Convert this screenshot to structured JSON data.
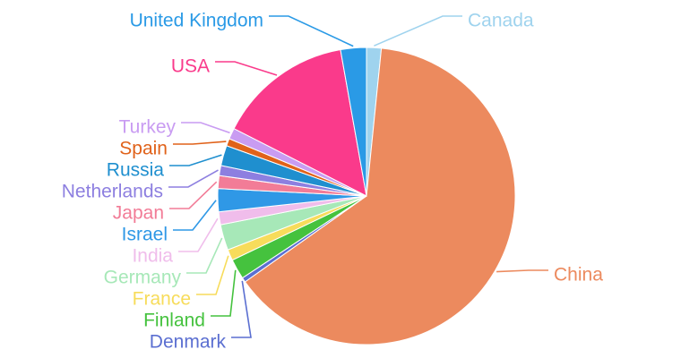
{
  "chart_data": {
    "type": "pie",
    "title": "",
    "slices": [
      {
        "label": "Canada",
        "value": 1.6,
        "color": "#9fd3ee"
      },
      {
        "label": "China",
        "value": 63.6,
        "color": "#ec8a5e"
      },
      {
        "label": "Denmark",
        "value": 0.5,
        "color": "#5b6fd1"
      },
      {
        "label": "Finland",
        "value": 2.2,
        "color": "#45c23e"
      },
      {
        "label": "France",
        "value": 1.2,
        "color": "#f7dc5b"
      },
      {
        "label": "Germany",
        "value": 2.8,
        "color": "#a7e8b8"
      },
      {
        "label": "India",
        "value": 1.4,
        "color": "#f0bdeb"
      },
      {
        "label": "Israel",
        "value": 2.5,
        "color": "#2f98e6"
      },
      {
        "label": "Japan",
        "value": 1.4,
        "color": "#f27c97"
      },
      {
        "label": "Netherlands",
        "value": 1.1,
        "color": "#8d7fe0"
      },
      {
        "label": "Russia",
        "value": 2.2,
        "color": "#1f8fcf"
      },
      {
        "label": "Spain",
        "value": 0.8,
        "color": "#e0621a"
      },
      {
        "label": "Turkey",
        "value": 1.2,
        "color": "#c99cf2"
      },
      {
        "label": "USA",
        "value": 14.7,
        "color": "#fa3a8b"
      },
      {
        "label": "United Kingdom",
        "value": 2.8,
        "color": "#2a9ae6"
      }
    ]
  }
}
